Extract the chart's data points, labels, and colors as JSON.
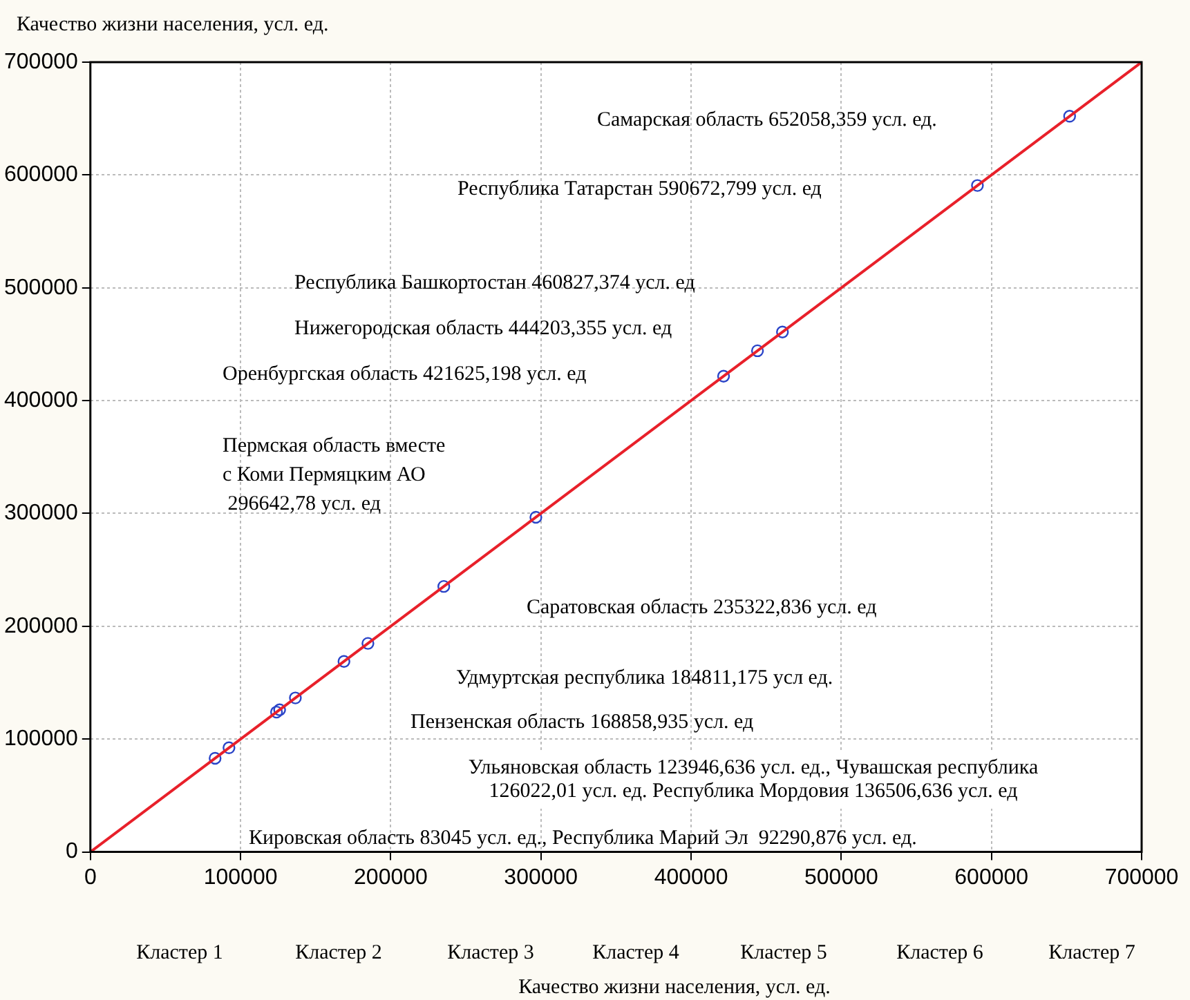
{
  "chart_data": {
    "type": "scatter",
    "xlabel": "Качество жизни населения, усл. ед.",
    "ylabel": "Качество жизни населения, усл. ед.",
    "xlim": [
      0,
      700000
    ],
    "ylim": [
      0,
      700000
    ],
    "xticks": [
      0,
      100000,
      200000,
      300000,
      400000,
      500000,
      600000,
      700000
    ],
    "yticks": [
      0,
      100000,
      200000,
      300000,
      400000,
      500000,
      600000,
      700000
    ],
    "grid": true,
    "legend": false,
    "marker": "circle",
    "series": [
      {
        "color": "#2a44c8",
        "x": [
          83045,
          92290.876,
          123946.636,
          126022.01,
          136506.636,
          168858.935,
          184811.175,
          235322.836,
          296642.78,
          421625.198,
          444203.355,
          460827.374,
          590672.799,
          652058.359
        ],
        "values": [
          83045,
          92290.876,
          123946.636,
          126022.01,
          136506.636,
          168858.935,
          184811.175,
          235322.836,
          296642.78,
          421625.198,
          444203.355,
          460827.374,
          590672.799,
          652058.359
        ]
      },
      {
        "type": "line",
        "color": "#e8202a",
        "marker": "none",
        "line_style": "solid",
        "x": [
          0,
          700000
        ],
        "values": [
          0,
          700000
        ]
      }
    ],
    "annotations": [
      "Самарская область 652058,359 усл. ед.",
      "Республика Татарстан 590672,799 усл. ед",
      "Республика Башкортостан 460827,374 усл. ед",
      "Нижегородская область 444203,355 усл. ед",
      "Оренбургская область 421625,198 усл. ед",
      "Пермская область вместе\nс Коми Пермяцким АО\n 296642,78 усл. ед",
      "Саратовская область 235322,836 усл. ед",
      "Удмуртская республика 184811,175 усл ед.",
      "Пензенская область 168858,935 усл. ед",
      "Ульяновская область 123946,636 усл. ед., Чувашская республика\n126022,01 усл. ед. Республика Мордовия 136506,636 усл. ед",
      "Кировская область 83045 усл. ед., Республика Марий Эл  92290,876 усл. ед.",
      "Кластер 1",
      "Кластер 2",
      "Кластер 3",
      "Кластер 4",
      "Кластер 5",
      "Кластер 6",
      "Кластер 7"
    ]
  }
}
